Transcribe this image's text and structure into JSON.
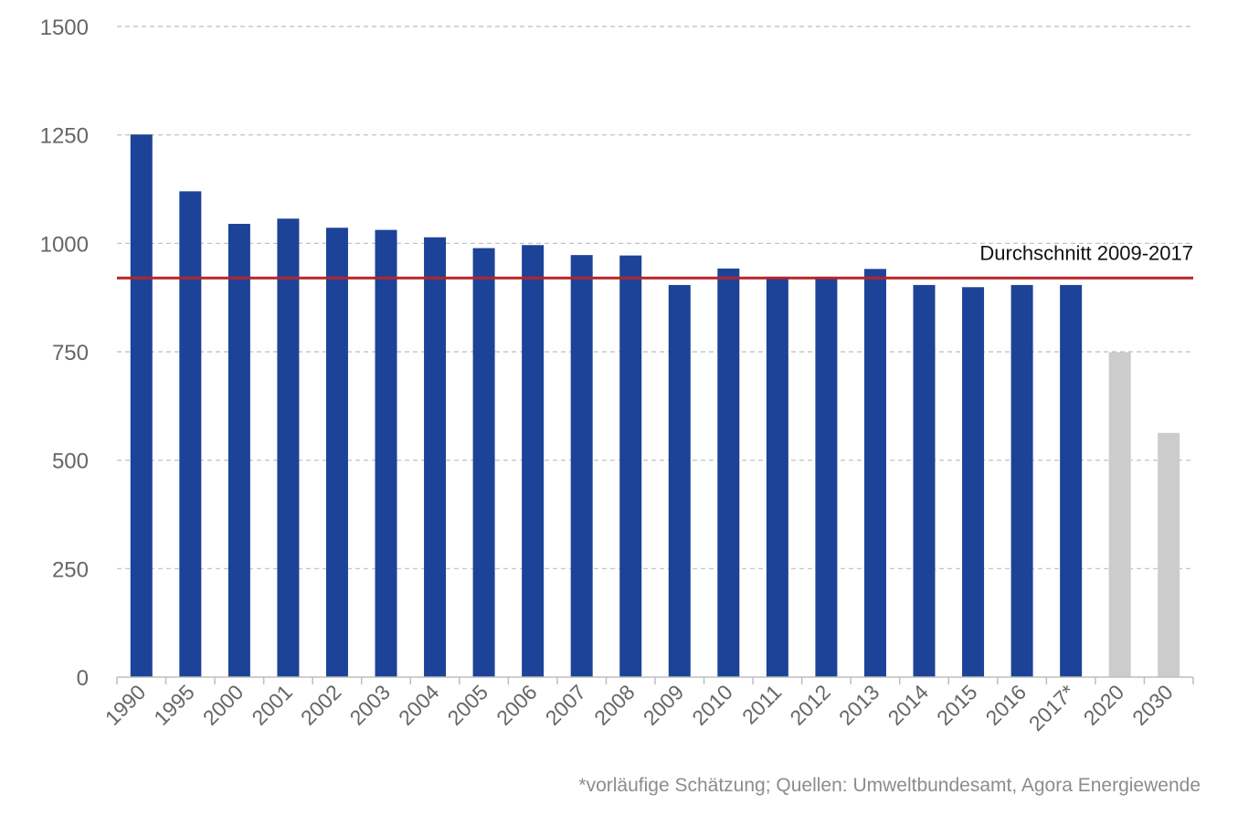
{
  "chart_data": {
    "type": "bar",
    "categories": [
      "1990",
      "1995",
      "2000",
      "2001",
      "2002",
      "2003",
      "2004",
      "2005",
      "2006",
      "2007",
      "2008",
      "2009",
      "2010",
      "2011",
      "2012",
      "2013",
      "2014",
      "2015",
      "2016",
      "2017*",
      "2020",
      "2030"
    ],
    "values": [
      1251,
      1120,
      1045,
      1057,
      1036,
      1031,
      1014,
      989,
      996,
      973,
      972,
      904,
      942,
      923,
      923,
      941,
      904,
      899,
      904,
      904,
      749,
      563
    ],
    "bar_colors": [
      "#1c4397",
      "#1c4397",
      "#1c4397",
      "#1c4397",
      "#1c4397",
      "#1c4397",
      "#1c4397",
      "#1c4397",
      "#1c4397",
      "#1c4397",
      "#1c4397",
      "#1c4397",
      "#1c4397",
      "#1c4397",
      "#1c4397",
      "#1c4397",
      "#1c4397",
      "#1c4397",
      "#1c4397",
      "#1c4397",
      "#cccccc",
      "#cccccc"
    ],
    "ylim": [
      0,
      1500
    ],
    "yticks": [
      0,
      250,
      500,
      750,
      1000,
      1250,
      1500
    ],
    "grid": true,
    "reference_line": {
      "label": "Durchschnitt 2009-2017",
      "value": 920,
      "color": "#b8242a"
    }
  },
  "source_note": "*vorläufige Schätzung; Quellen: Umweltbundesamt, Agora Energiewende"
}
